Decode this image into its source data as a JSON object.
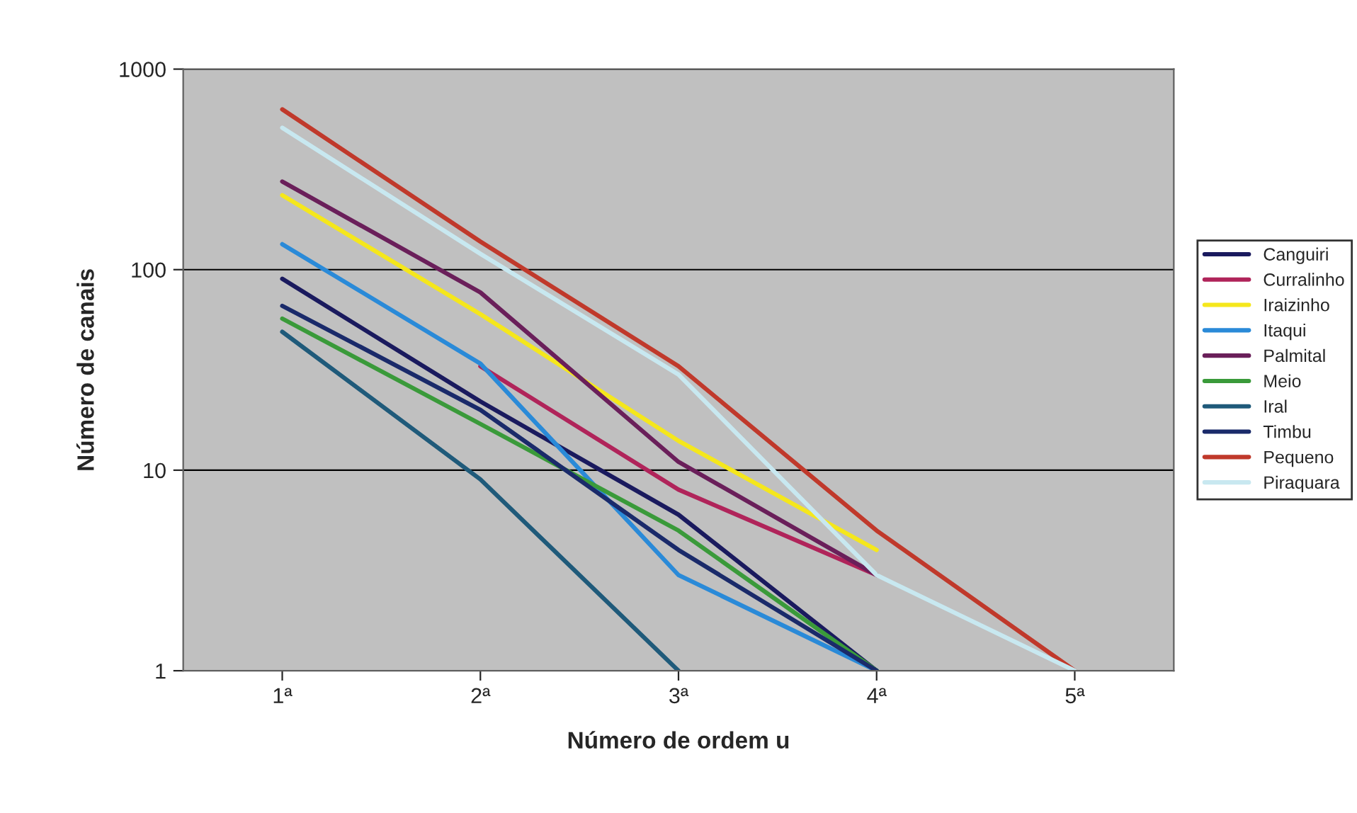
{
  "chart_data": {
    "type": "line",
    "xlabel": "Número de ordem u",
    "ylabel": "Número de canais",
    "categories": [
      "1ª",
      "2ª",
      "3ª",
      "4ª",
      "5ª"
    ],
    "series": [
      {
        "name": "Canguiri",
        "color": "#1a1a5e",
        "values": [
          90,
          22,
          6,
          1,
          null
        ]
      },
      {
        "name": "Curralinho",
        "color": "#b0245a",
        "values": [
          null,
          33,
          8,
          3,
          null
        ]
      },
      {
        "name": "Iraizinho",
        "color": "#f5e71c",
        "values": [
          235,
          60,
          14,
          4,
          null
        ]
      },
      {
        "name": "Itaqui",
        "color": "#2a8ad8",
        "values": [
          134,
          34,
          3,
          1,
          null
        ]
      },
      {
        "name": "Palmital",
        "color": "#6a1f5a",
        "values": [
          275,
          77,
          11,
          3,
          null
        ]
      },
      {
        "name": "Meio",
        "color": "#3a9a3a",
        "values": [
          57,
          17,
          5,
          1,
          null
        ]
      },
      {
        "name": "Iral",
        "color": "#1f5a7a",
        "values": [
          49,
          9,
          1,
          null,
          null
        ]
      },
      {
        "name": "Timbu",
        "color": "#1a2a6a",
        "values": [
          66,
          20,
          4,
          1,
          null
        ]
      },
      {
        "name": "Pequeno",
        "color": "#c0392b",
        "values": [
          630,
          138,
          33,
          5,
          1
        ]
      },
      {
        "name": "Piraquara",
        "color": "#c8e8f0",
        "values": [
          510,
          120,
          30,
          3,
          1
        ]
      }
    ],
    "log": true,
    "ylim": [
      1,
      1000
    ],
    "yticks": [
      1,
      10,
      100,
      1000
    ],
    "grid": "y",
    "legend": "right",
    "marker": "none",
    "line_style": "solid"
  }
}
